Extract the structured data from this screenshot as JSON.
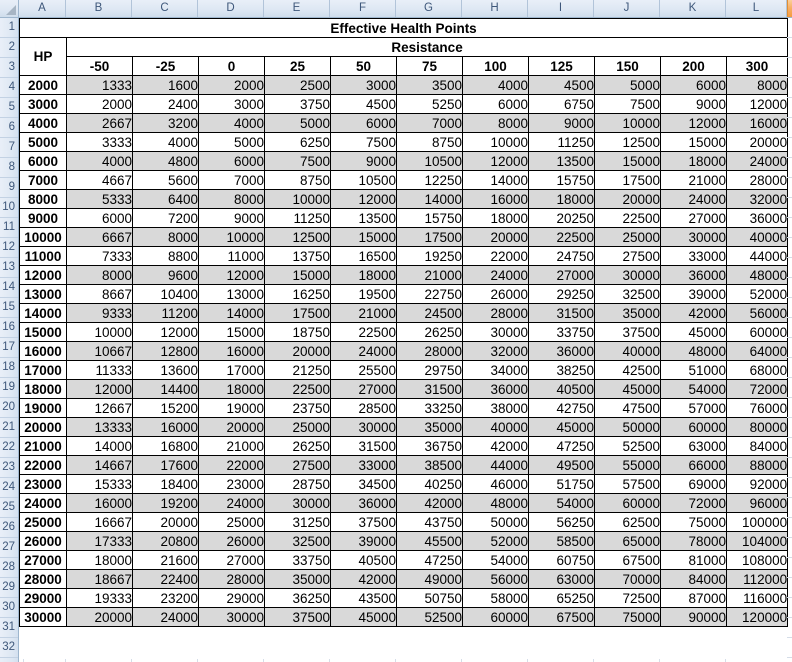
{
  "sheet": {
    "title": "Effective Health Points",
    "column_letters": [
      "A",
      "B",
      "C",
      "D",
      "E",
      "F",
      "G",
      "H",
      "I",
      "J",
      "K",
      "L"
    ],
    "row_numbers": [
      "1",
      "2",
      "3",
      "4",
      "5",
      "6",
      "7",
      "8",
      "9",
      "10",
      "11",
      "12",
      "13",
      "14",
      "15",
      "16",
      "17",
      "18",
      "19",
      "20",
      "21",
      "22",
      "23",
      "24",
      "25",
      "26",
      "27",
      "28",
      "29",
      "30",
      "31",
      "32"
    ],
    "header": {
      "hp_label": "HP",
      "resistance_label": "Resistance",
      "resistance_values": [
        "-50",
        "-25",
        "0",
        "25",
        "50",
        "75",
        "100",
        "125",
        "150",
        "200",
        "300"
      ]
    },
    "rows": [
      {
        "hp": "2000",
        "values": [
          "1333",
          "1600",
          "2000",
          "2500",
          "3000",
          "3500",
          "4000",
          "4500",
          "5000",
          "6000",
          "8000"
        ]
      },
      {
        "hp": "3000",
        "values": [
          "2000",
          "2400",
          "3000",
          "3750",
          "4500",
          "5250",
          "6000",
          "6750",
          "7500",
          "9000",
          "12000"
        ]
      },
      {
        "hp": "4000",
        "values": [
          "2667",
          "3200",
          "4000",
          "5000",
          "6000",
          "7000",
          "8000",
          "9000",
          "10000",
          "12000",
          "16000"
        ]
      },
      {
        "hp": "5000",
        "values": [
          "3333",
          "4000",
          "5000",
          "6250",
          "7500",
          "8750",
          "10000",
          "11250",
          "12500",
          "15000",
          "20000"
        ]
      },
      {
        "hp": "6000",
        "values": [
          "4000",
          "4800",
          "6000",
          "7500",
          "9000",
          "10500",
          "12000",
          "13500",
          "15000",
          "18000",
          "24000"
        ]
      },
      {
        "hp": "7000",
        "values": [
          "4667",
          "5600",
          "7000",
          "8750",
          "10500",
          "12250",
          "14000",
          "15750",
          "17500",
          "21000",
          "28000"
        ]
      },
      {
        "hp": "8000",
        "values": [
          "5333",
          "6400",
          "8000",
          "10000",
          "12000",
          "14000",
          "16000",
          "18000",
          "20000",
          "24000",
          "32000"
        ]
      },
      {
        "hp": "9000",
        "values": [
          "6000",
          "7200",
          "9000",
          "11250",
          "13500",
          "15750",
          "18000",
          "20250",
          "22500",
          "27000",
          "36000"
        ]
      },
      {
        "hp": "10000",
        "values": [
          "6667",
          "8000",
          "10000",
          "12500",
          "15000",
          "17500",
          "20000",
          "22500",
          "25000",
          "30000",
          "40000"
        ]
      },
      {
        "hp": "11000",
        "values": [
          "7333",
          "8800",
          "11000",
          "13750",
          "16500",
          "19250",
          "22000",
          "24750",
          "27500",
          "33000",
          "44000"
        ]
      },
      {
        "hp": "12000",
        "values": [
          "8000",
          "9600",
          "12000",
          "15000",
          "18000",
          "21000",
          "24000",
          "27000",
          "30000",
          "36000",
          "48000"
        ]
      },
      {
        "hp": "13000",
        "values": [
          "8667",
          "10400",
          "13000",
          "16250",
          "19500",
          "22750",
          "26000",
          "29250",
          "32500",
          "39000",
          "52000"
        ]
      },
      {
        "hp": "14000",
        "values": [
          "9333",
          "11200",
          "14000",
          "17500",
          "21000",
          "24500",
          "28000",
          "31500",
          "35000",
          "42000",
          "56000"
        ]
      },
      {
        "hp": "15000",
        "values": [
          "10000",
          "12000",
          "15000",
          "18750",
          "22500",
          "26250",
          "30000",
          "33750",
          "37500",
          "45000",
          "60000"
        ]
      },
      {
        "hp": "16000",
        "values": [
          "10667",
          "12800",
          "16000",
          "20000",
          "24000",
          "28000",
          "32000",
          "36000",
          "40000",
          "48000",
          "64000"
        ]
      },
      {
        "hp": "17000",
        "values": [
          "11333",
          "13600",
          "17000",
          "21250",
          "25500",
          "29750",
          "34000",
          "38250",
          "42500",
          "51000",
          "68000"
        ]
      },
      {
        "hp": "18000",
        "values": [
          "12000",
          "14400",
          "18000",
          "22500",
          "27000",
          "31500",
          "36000",
          "40500",
          "45000",
          "54000",
          "72000"
        ]
      },
      {
        "hp": "19000",
        "values": [
          "12667",
          "15200",
          "19000",
          "23750",
          "28500",
          "33250",
          "38000",
          "42750",
          "47500",
          "57000",
          "76000"
        ]
      },
      {
        "hp": "20000",
        "values": [
          "13333",
          "16000",
          "20000",
          "25000",
          "30000",
          "35000",
          "40000",
          "45000",
          "50000",
          "60000",
          "80000"
        ]
      },
      {
        "hp": "21000",
        "values": [
          "14000",
          "16800",
          "21000",
          "26250",
          "31500",
          "36750",
          "42000",
          "47250",
          "52500",
          "63000",
          "84000"
        ]
      },
      {
        "hp": "22000",
        "values": [
          "14667",
          "17600",
          "22000",
          "27500",
          "33000",
          "38500",
          "44000",
          "49500",
          "55000",
          "66000",
          "88000"
        ]
      },
      {
        "hp": "23000",
        "values": [
          "15333",
          "18400",
          "23000",
          "28750",
          "34500",
          "40250",
          "46000",
          "51750",
          "57500",
          "69000",
          "92000"
        ]
      },
      {
        "hp": "24000",
        "values": [
          "16000",
          "19200",
          "24000",
          "30000",
          "36000",
          "42000",
          "48000",
          "54000",
          "60000",
          "72000",
          "96000"
        ]
      },
      {
        "hp": "25000",
        "values": [
          "16667",
          "20000",
          "25000",
          "31250",
          "37500",
          "43750",
          "50000",
          "56250",
          "62500",
          "75000",
          "100000"
        ]
      },
      {
        "hp": "26000",
        "values": [
          "17333",
          "20800",
          "26000",
          "32500",
          "39000",
          "45500",
          "52000",
          "58500",
          "65000",
          "78000",
          "104000"
        ]
      },
      {
        "hp": "27000",
        "values": [
          "18000",
          "21600",
          "27000",
          "33750",
          "40500",
          "47250",
          "54000",
          "60750",
          "67500",
          "81000",
          "108000"
        ]
      },
      {
        "hp": "28000",
        "values": [
          "18667",
          "22400",
          "28000",
          "35000",
          "42000",
          "49000",
          "56000",
          "63000",
          "70000",
          "84000",
          "112000"
        ]
      },
      {
        "hp": "29000",
        "values": [
          "19333",
          "23200",
          "29000",
          "36250",
          "43500",
          "50750",
          "58000",
          "65250",
          "72500",
          "87000",
          "116000"
        ]
      },
      {
        "hp": "30000",
        "values": [
          "20000",
          "24000",
          "30000",
          "37500",
          "45000",
          "52500",
          "60000",
          "67500",
          "75000",
          "90000",
          "120000"
        ]
      }
    ],
    "colors": {
      "header_fill": "#DCE6F1",
      "band_fill": "#D9D9D9",
      "cell_fill": "#FFFFFF",
      "grid_border": "#000000",
      "chrome_border": "#9EB6CE",
      "chrome_text": "#3E577A",
      "selected_column_accent": "#F49A3F"
    }
  }
}
